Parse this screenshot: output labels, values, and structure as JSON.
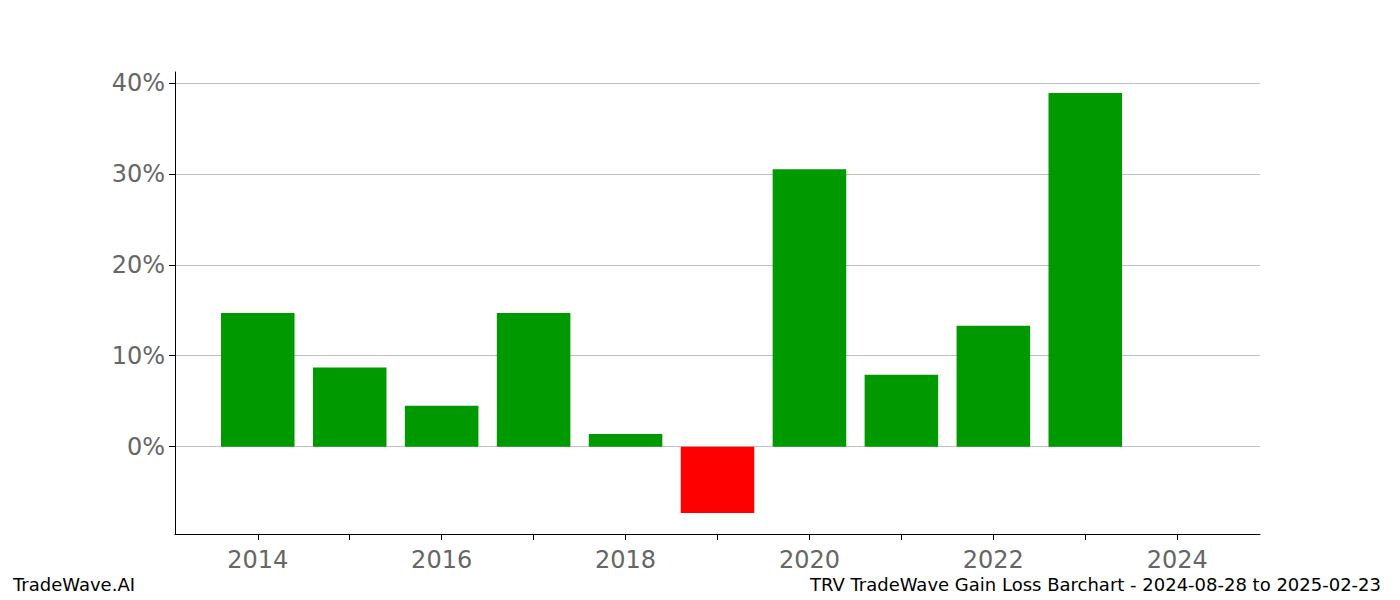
{
  "chart_data": {
    "type": "bar",
    "title": "TRV TradeWave Gain Loss Barchart - 2024-08-28 to 2025-02-23",
    "annotations": [
      "TradeWave.AI"
    ],
    "x": [
      2014,
      2015,
      2016,
      2017,
      2018,
      2019,
      2020,
      2021,
      2022,
      2023
    ],
    "values": [
      14.7,
      8.7,
      4.5,
      14.7,
      1.4,
      -7.3,
      30.5,
      7.9,
      13.3,
      38.9
    ],
    "colors": [
      "#009900",
      "#009900",
      "#009900",
      "#009900",
      "#009900",
      "#ff0000",
      "#009900",
      "#009900",
      "#009900",
      "#009900"
    ],
    "xlim": [
      2013.1,
      2024.9
    ],
    "xticks": [
      2014,
      2016,
      2018,
      2020,
      2022,
      2024
    ],
    "ylim": [
      -9.6,
      41.2
    ],
    "yticks": [
      {
        "value": 0,
        "label": "0%"
      },
      {
        "value": 10,
        "label": "10%"
      },
      {
        "value": 20,
        "label": "20%"
      },
      {
        "value": 30,
        "label": "30%"
      },
      {
        "value": 40,
        "label": "40%"
      }
    ],
    "grid": true
  }
}
